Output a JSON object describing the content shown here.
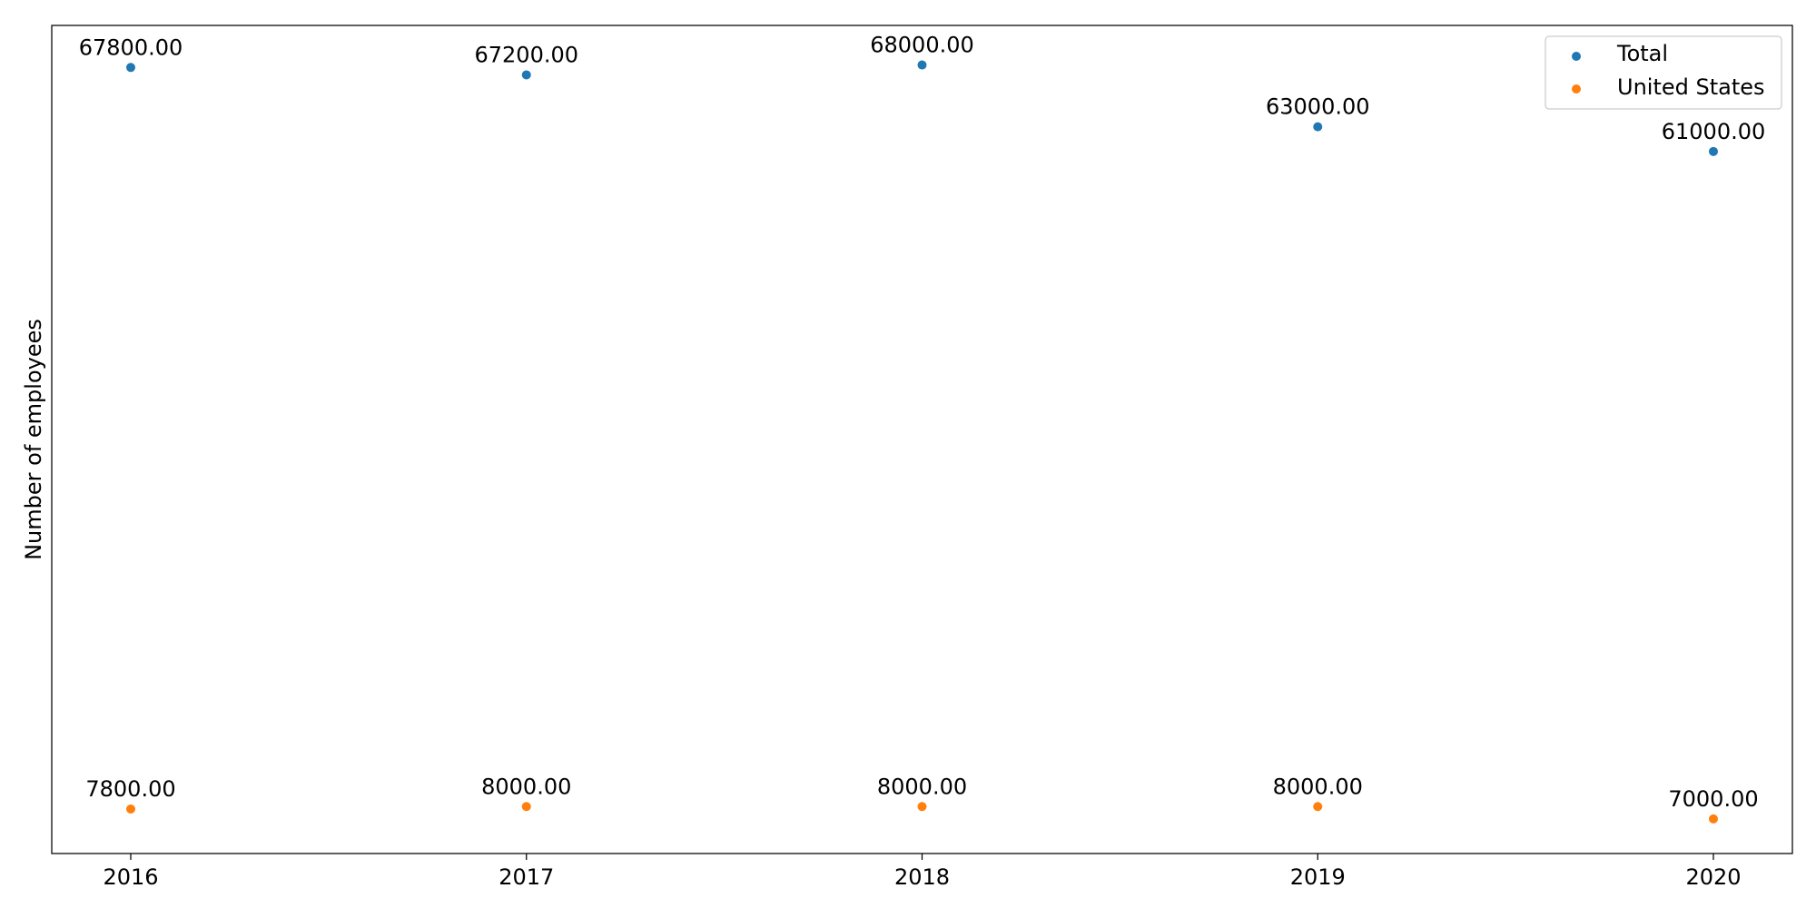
{
  "chart_data": {
    "type": "scatter",
    "categories": [
      "2016",
      "2017",
      "2018",
      "2019",
      "2020"
    ],
    "series": [
      {
        "name": "Total",
        "color": "#1f77b4",
        "values": [
          67800,
          67200,
          68000,
          63000,
          61000
        ]
      },
      {
        "name": "United States",
        "color": "#ff7f0e",
        "values": [
          7800,
          8000,
          8000,
          8000,
          7000
        ]
      }
    ],
    "data_labels": [
      [
        "67800.00",
        "67200.00",
        "68000.00",
        "63000.00",
        "61000.00"
      ],
      [
        "7800.00",
        "8000.00",
        "8000.00",
        "8000.00",
        "7000.00"
      ]
    ],
    "title": "",
    "xlabel": "",
    "ylabel": "Number of employees",
    "ylim": [
      4200,
      71200
    ],
    "y_ticks_visible": false,
    "grid": false,
    "legend_position": "top-right"
  }
}
